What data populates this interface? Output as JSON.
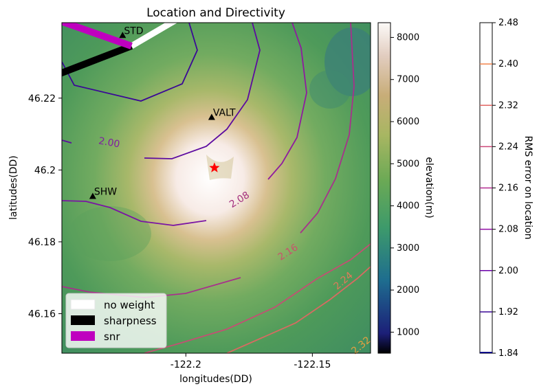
{
  "chart_data": [
    {
      "type": "contour",
      "title": "Location and Directivity",
      "xlabel": "longitudes(DD)",
      "ylabel": "latitudes(DD)",
      "xlim": [
        -122.249,
        -122.127
      ],
      "ylim": [
        46.149,
        46.241
      ],
      "xticks": [
        {
          "value": -122.2,
          "label": "-122.2"
        },
        {
          "value": -122.15,
          "label": "-122.15"
        }
      ],
      "yticks": [
        {
          "value": 46.22,
          "label": "46.22"
        },
        {
          "value": 46.2,
          "label": "46.2"
        },
        {
          "value": 46.18,
          "label": "46.18"
        },
        {
          "value": 46.16,
          "label": "46.16"
        }
      ],
      "stations": [
        {
          "name": "STD",
          "lon": -122.225,
          "lat": 46.2375
        },
        {
          "name": "VALT",
          "lon": -122.1898,
          "lat": 46.2147
        },
        {
          "name": "SHW",
          "lon": -122.2368,
          "lat": 46.1927
        }
      ],
      "epicenter": {
        "lon": -122.1887,
        "lat": 46.2006
      },
      "directivity_lines": [
        {
          "name": "no weight",
          "color": "#ffffff",
          "from": [
            -122.2215,
            46.2345
          ],
          "to": [
            -122.196,
            46.245
          ]
        },
        {
          "name": "sharpness",
          "color": "#000000",
          "from": [
            -122.2215,
            46.2345
          ],
          "to": [
            -122.262,
            46.2235
          ]
        },
        {
          "name": "snr",
          "color": "#bf00bf",
          "from": [
            -122.2215,
            46.2345
          ],
          "to": [
            -122.262,
            46.2445
          ]
        }
      ],
      "contour_labels": [
        {
          "text": "2.00",
          "lon": -122.2305,
          "lat": 46.2068,
          "rotation": 10,
          "color": "#8020a0"
        },
        {
          "text": "2.08",
          "lon": -122.1782,
          "lat": 46.191,
          "rotation": -32,
          "color": "#a4307e"
        },
        {
          "text": "2.16",
          "lon": -122.159,
          "lat": 46.1764,
          "rotation": -33,
          "color": "#c8546c"
        },
        {
          "text": "2.24",
          "lon": -122.137,
          "lat": 46.1685,
          "rotation": -40,
          "color": "#e07a5a"
        },
        {
          "text": "2.32",
          "lon": -122.13,
          "lat": 46.1505,
          "rotation": -40,
          "color": "#e8a040"
        }
      ],
      "legend": {
        "position": "lower-left",
        "entries": [
          "no weight",
          "sharpness",
          "snr"
        ]
      }
    },
    {
      "type": "colorbar",
      "label": "elevation(m)",
      "colormap": "gist_earth",
      "range": [
        500,
        8350
      ],
      "ticks": [
        1000,
        2000,
        3000,
        4000,
        5000,
        6000,
        7000,
        8000
      ]
    },
    {
      "type": "colorbar",
      "label": "RMS error on location",
      "range": [
        1.84,
        2.48
      ],
      "ticks": [
        "1.84",
        "1.92",
        "2.00",
        "2.08",
        "2.16",
        "2.24",
        "2.32",
        "2.40",
        "2.48"
      ],
      "line_colors": [
        "#0d0887",
        "#3a0896",
        "#6a00a8",
        "#8f0da4",
        "#b12a90",
        "#cc4778",
        "#e16462",
        "#f2844b",
        "#fca636",
        "#fcce25"
      ]
    }
  ]
}
